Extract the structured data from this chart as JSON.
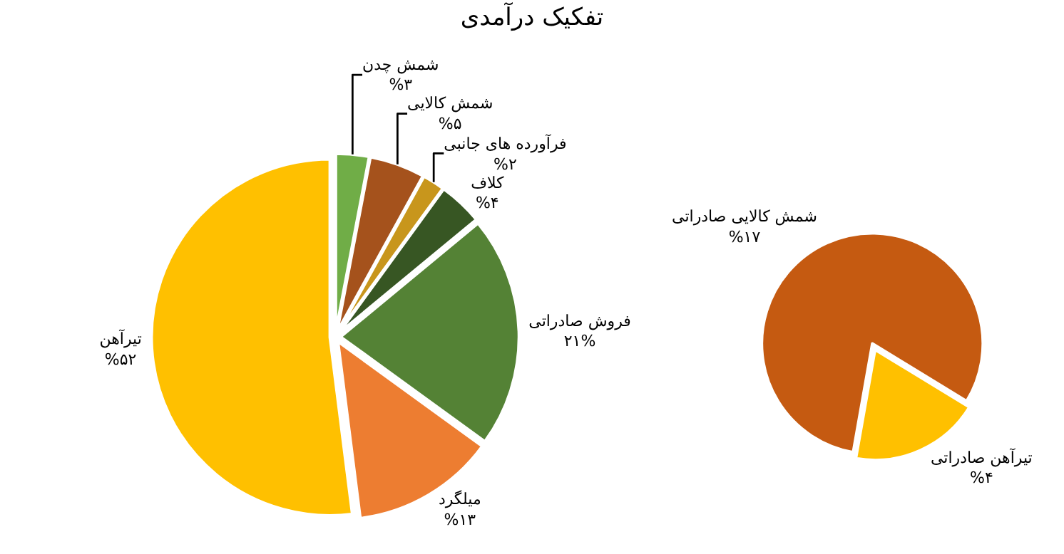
{
  "chart_data": [
    {
      "type": "pie",
      "title": "تفکیک درآمدی",
      "categories": [
        "شمش چدن",
        "شمش کالایی",
        "فرآورده های جانبی",
        "کلاف",
        "فروش صادراتی",
        "میلگرد",
        "تیرآهن"
      ],
      "values": [
        3,
        5,
        2,
        4,
        21,
        13,
        52
      ],
      "value_labels": [
        "%۳",
        "%۵",
        "%۲",
        "%۴",
        "۲۱%",
        "%۱۳",
        "%۵۲"
      ],
      "colors": [
        "#70ad47",
        "#a5521c",
        "#c8961c",
        "#375623",
        "#548235",
        "#ed7d31",
        "#ffc000"
      ]
    },
    {
      "type": "pie",
      "categories": [
        "شمش کالایی صادراتی",
        "تیرآهن صادراتی"
      ],
      "values": [
        17,
        4
      ],
      "value_labels": [
        "%۱۷",
        "%۴"
      ],
      "colors": [
        "#c55a11",
        "#ffc000"
      ]
    }
  ]
}
